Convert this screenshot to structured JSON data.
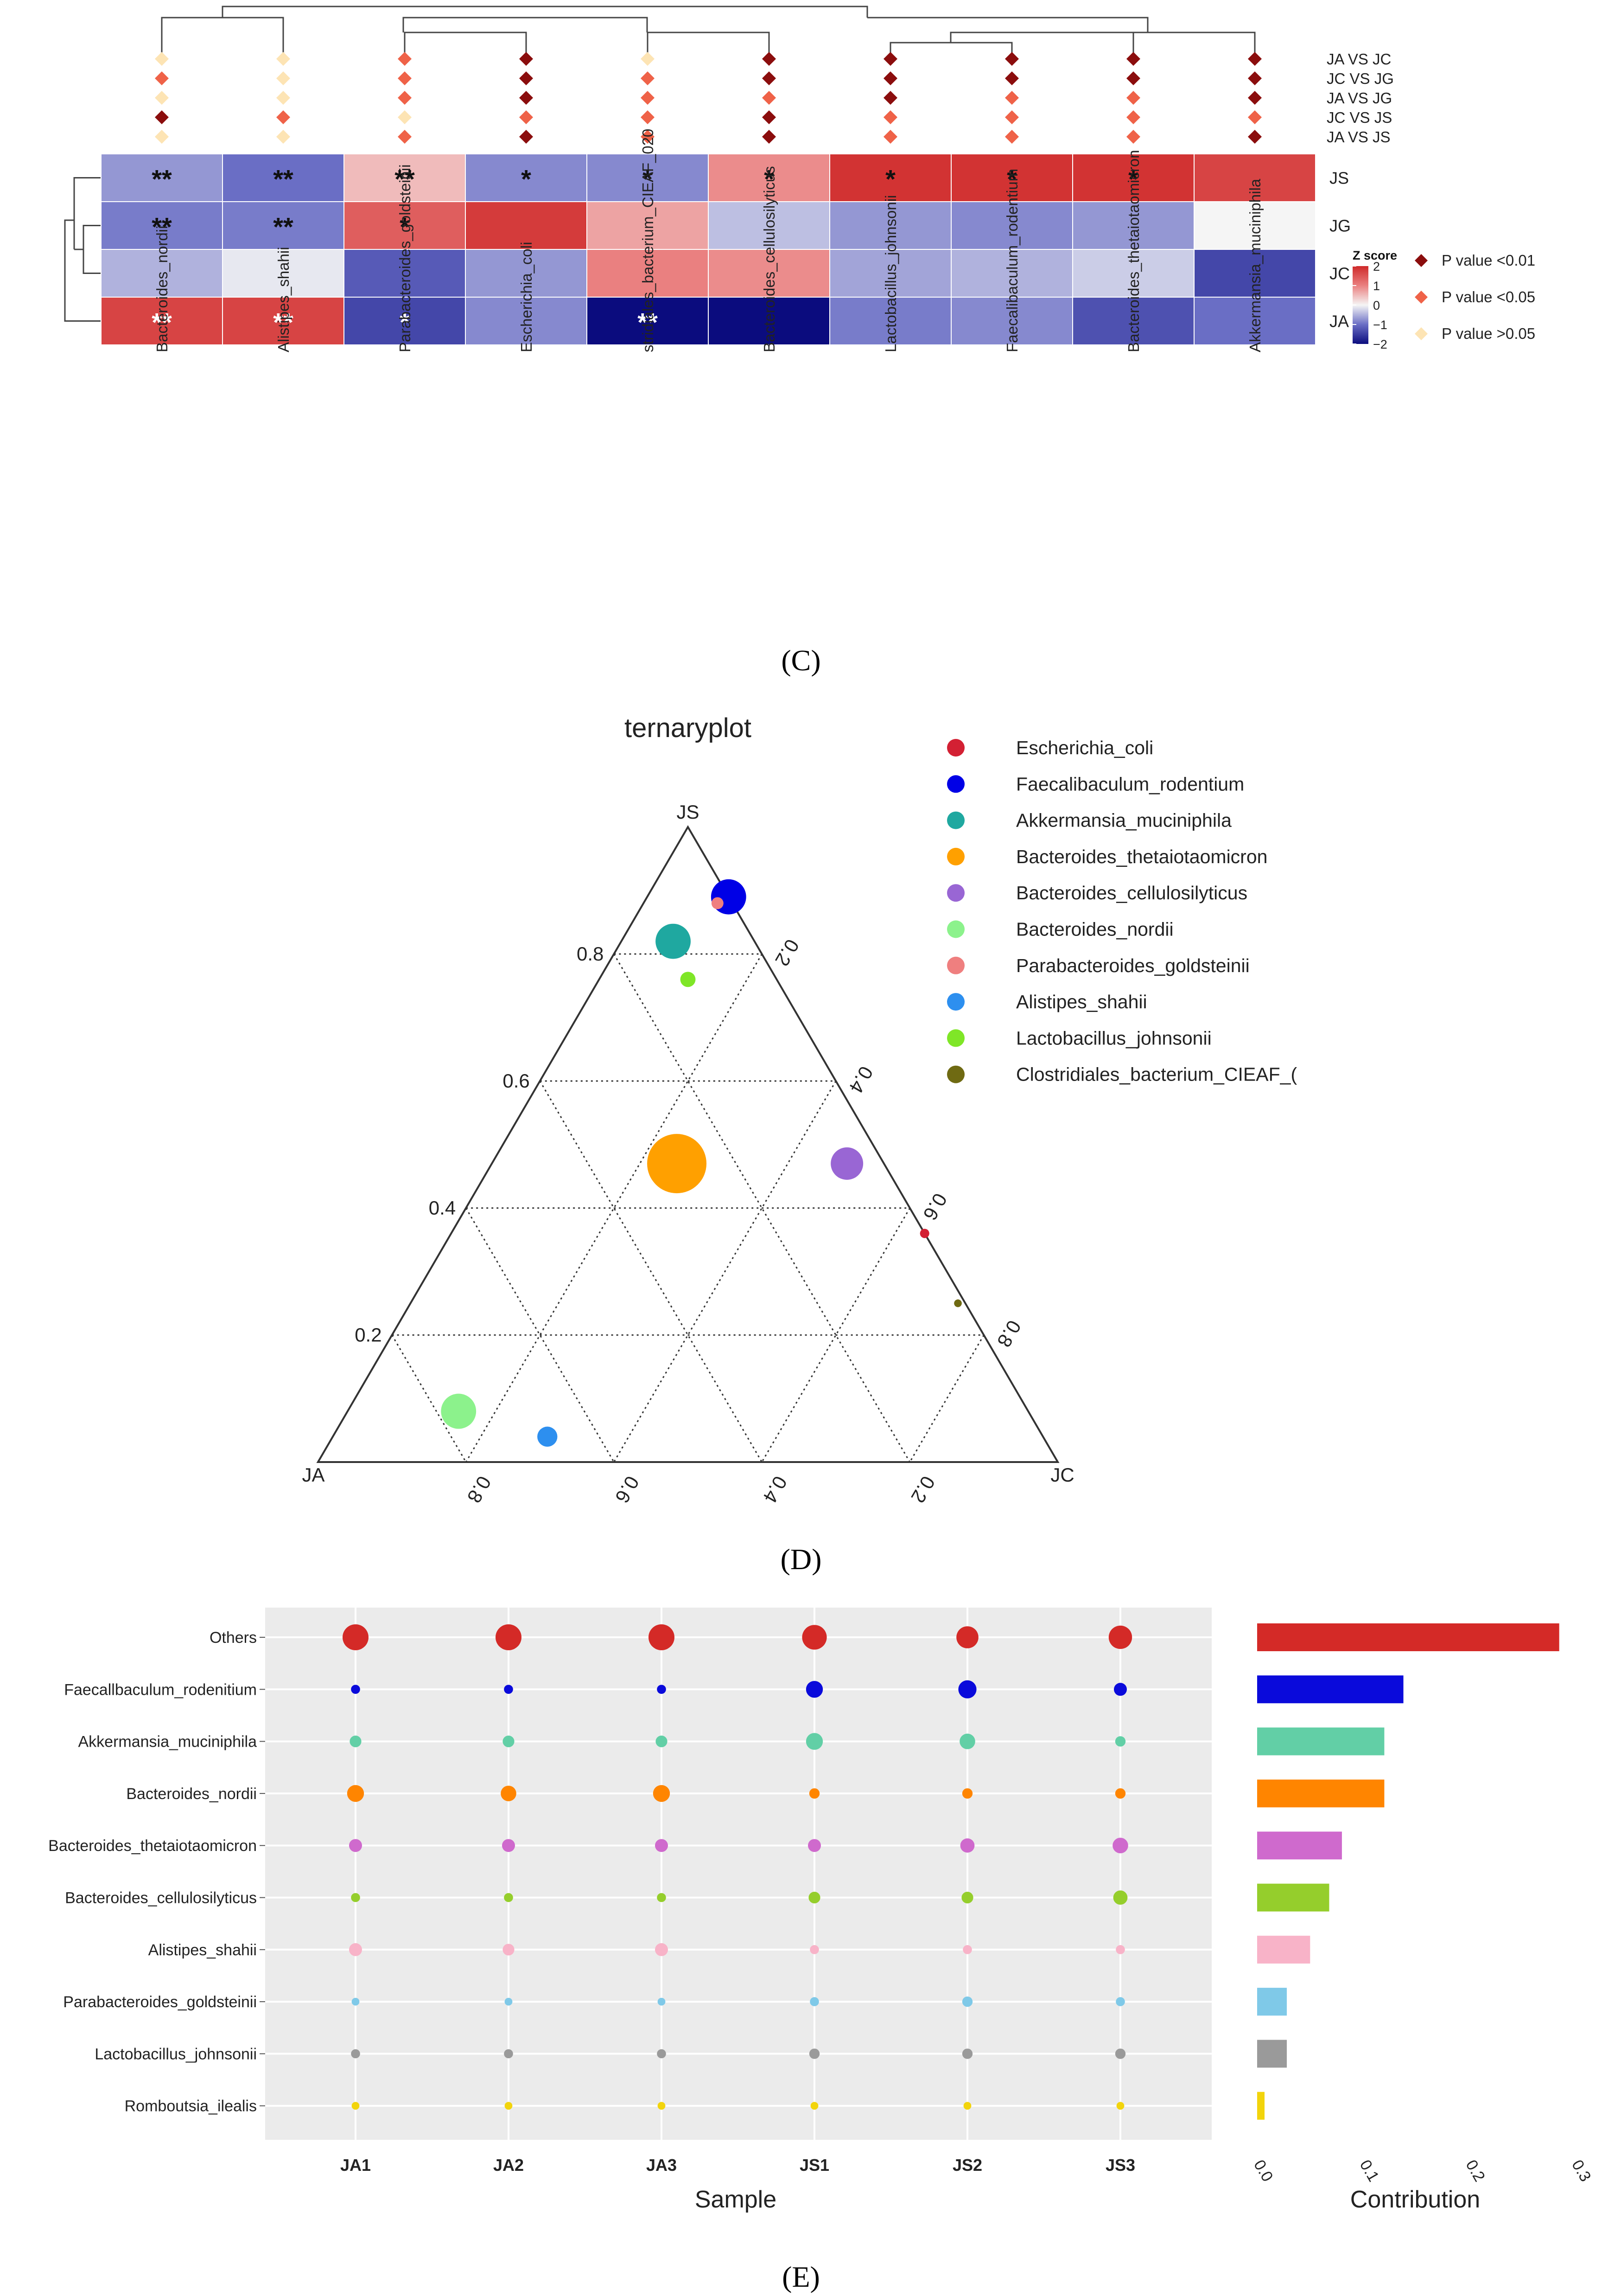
{
  "panels": {
    "c": "(C)",
    "d": "(D)",
    "e": "(E)"
  },
  "chart_data": [
    {
      "id": "heatmap",
      "type": "heatmap",
      "title": "",
      "rows": [
        "JS",
        "JG",
        "JC",
        "JA"
      ],
      "columns": [
        "Bacteroides_nordii",
        "Alistipes_shahii",
        "Parabacteroides_goldsteinii",
        "Escherichia_coli",
        "stridiales_bacterium_CIEAF_020",
        "Bacteroides_cellulosilyticus",
        "Lactobacillus_johnsonii",
        "Faecalibaculum_rodentium",
        "Bacteroides_thetaiotaomicron",
        "Akkermansia_muciniphila"
      ],
      "z": [
        [
          -0.7,
          -1.0,
          0.5,
          -0.8,
          -0.8,
          0.9,
          1.9,
          1.9,
          1.9,
          1.7
        ],
        [
          -0.9,
          -0.9,
          1.4,
          1.8,
          0.7,
          -0.4,
          -0.7,
          -0.8,
          -0.7,
          0.0
        ],
        [
          -0.5,
          -0.1,
          -1.2,
          -0.7,
          1.0,
          0.9,
          -0.6,
          -0.5,
          -0.3,
          -1.4
        ],
        [
          1.7,
          1.7,
          -1.4,
          -0.8,
          -2.0,
          -2.0,
          -0.9,
          -0.8,
          -1.3,
          -1.0
        ]
      ],
      "stars": [
        [
          "**",
          "**",
          "**",
          "*",
          "*",
          "*",
          "*",
          "*",
          "*",
          ""
        ],
        [
          "**",
          "**",
          "*",
          "",
          "",
          "",
          "",
          "",
          "",
          ""
        ],
        [
          "",
          "",
          "",
          "",
          "",
          "",
          "",
          "",
          "",
          ""
        ],
        [
          "**",
          "**",
          "*",
          "",
          "**",
          "",
          "",
          "",
          "",
          ""
        ]
      ],
      "star_color": [
        [
          "dark",
          "dark",
          "dark",
          "dark",
          "dark",
          "dark",
          "dark",
          "dark",
          "dark",
          ""
        ],
        [
          "dark",
          "dark",
          "dark",
          "",
          "",
          "",
          "",
          "",
          "",
          ""
        ],
        [
          "",
          "",
          "",
          "",
          "",
          "",
          "",
          "",
          "",
          ""
        ],
        [
          "light",
          "light",
          "light",
          "",
          "light",
          "",
          "",
          "",
          "",
          ""
        ]
      ],
      "comparisons": [
        "JA VS JC",
        "JC VS JG",
        "JA VS JG",
        "JC VS JS",
        "JA VS JS"
      ],
      "p_levels": [
        [
          2,
          2,
          1,
          0,
          2,
          0,
          0,
          0,
          0,
          0
        ],
        [
          1,
          2,
          1,
          0,
          1,
          0,
          0,
          0,
          0,
          0
        ],
        [
          2,
          2,
          1,
          0,
          1,
          1,
          0,
          1,
          1,
          0
        ],
        [
          0,
          1,
          2,
          1,
          1,
          0,
          1,
          1,
          1,
          1
        ],
        [
          2,
          2,
          1,
          0,
          1,
          0,
          1,
          1,
          1,
          0
        ]
      ],
      "p_legend": [
        "P value <0.01",
        "P value <0.05",
        "P value >0.05"
      ],
      "p_colors": [
        "#8b0d0d",
        "#ef6248",
        "#fde4b4"
      ],
      "zscore": {
        "title": "Z score",
        "ticks": [
          2,
          1,
          0,
          -1,
          -2
        ],
        "tick_labels": [
          "2",
          "1",
          "0",
          "−1",
          "−2"
        ],
        "range": [
          -2,
          2
        ],
        "colors": {
          "low": "#0b0c7e",
          "mid_low": "#6a6ec5",
          "mid": "#f5f5f5",
          "mid_high": "#ea8080",
          "high": "#cf2a2a"
        }
      }
    },
    {
      "id": "ternary",
      "type": "scatter",
      "title": "ternaryplot",
      "vertices": [
        "JS",
        "JA",
        "JC"
      ],
      "left_ticks": [
        "0.8",
        "0.6",
        "0.4",
        "0.2"
      ],
      "right_ticks": [
        "0.2",
        "0.4",
        "0.6",
        "0.8"
      ],
      "bottom_ticks": [
        "0.8",
        "0.6",
        "0.4",
        "0.2"
      ],
      "legend": [
        "Escherichia_coli",
        "Faecalibaculum_rodentium",
        "Akkermansia_muciniphila",
        "Bacteroides_thetaiotaomicron",
        "Bacteroides_cellulosilyticus",
        "Bacteroides_nordii",
        "Parabacteroides_goldsteinii",
        "Alistipes_shahii",
        "Lactobacillus_johnsonii",
        "Clostridiales_bacterium_CIEAF_("
      ],
      "colors": [
        "#d32033",
        "#0000e6",
        "#1fa8a0",
        "#ffa000",
        "#9966d4",
        "#8cf28c",
        "#ef7f7f",
        "#2d8fef",
        "#7fe627",
        "#6f6a12"
      ],
      "points": [
        {
          "name": "Escherichia_coli",
          "JS": 0.36,
          "JA": 0.0,
          "JC": 0.64,
          "size": 0.07
        },
        {
          "name": "Faecalibaculum_rodentium",
          "JS": 0.89,
          "JA": 0.0,
          "JC": 0.11,
          "size": 0.55
        },
        {
          "name": "Akkermansia_muciniphila",
          "JS": 0.82,
          "JA": 0.11,
          "JC": 0.07,
          "size": 0.55
        },
        {
          "name": "Bacteroides_thetaiotaomicron",
          "JS": 0.47,
          "JA": 0.28,
          "JC": 0.25,
          "size": 1.0
        },
        {
          "name": "Bacteroides_cellulosilyticus",
          "JS": 0.47,
          "JA": 0.05,
          "JC": 0.48,
          "size": 0.5
        },
        {
          "name": "Bacteroides_nordii",
          "JS": 0.08,
          "JA": 0.77,
          "JC": 0.15,
          "size": 0.55
        },
        {
          "name": "Parabacteroides_goldsteinii",
          "JS": 0.88,
          "JA": 0.02,
          "JC": 0.1,
          "size": 0.12
        },
        {
          "name": "Alistipes_shahii",
          "JS": 0.04,
          "JA": 0.67,
          "JC": 0.29,
          "size": 0.27
        },
        {
          "name": "Lactobacillus_johnsonii",
          "JS": 0.76,
          "JA": 0.12,
          "JC": 0.12,
          "size": 0.18
        },
        {
          "name": "Clostridiales_bacterium_CIEAF_020",
          "JS": 0.25,
          "JA": 0.01,
          "JC": 0.74,
          "size": 0.04
        }
      ]
    },
    {
      "id": "dotplot",
      "type": "scatter",
      "xlabel": "Sample",
      "samples": [
        "JA1",
        "JA2",
        "JA3",
        "JS1",
        "JS2",
        "JS3"
      ],
      "taxa": [
        "Others",
        "Faecallbaculum_rodenitium",
        "Akkermansia_muciniphila",
        "Bacteroides_nordii",
        "Bacteroides_thetaiotaomicron",
        "Bacteroides_cellulosilyticus",
        "Alistipes_shahii",
        "Parabacteroides_goldsteinii",
        "Lactobacillus_johnsonii",
        "Romboutsia_ilealis"
      ],
      "colors": [
        "#d42a27",
        "#0a0adb",
        "#62cfa6",
        "#ff8500",
        "#cf6acd",
        "#95ce2c",
        "#f8b3c8",
        "#7fc9e8",
        "#9a9a9a",
        "#f2d40c"
      ],
      "sizes": [
        [
          1.0,
          1.0,
          1.0,
          0.95,
          0.85,
          0.9
        ],
        [
          0.35,
          0.35,
          0.35,
          0.65,
          0.7,
          0.5
        ],
        [
          0.45,
          0.45,
          0.45,
          0.65,
          0.6,
          0.4
        ],
        [
          0.65,
          0.6,
          0.65,
          0.4,
          0.4,
          0.4
        ],
        [
          0.5,
          0.5,
          0.5,
          0.5,
          0.55,
          0.6
        ],
        [
          0.35,
          0.35,
          0.35,
          0.45,
          0.45,
          0.55
        ],
        [
          0.5,
          0.45,
          0.5,
          0.35,
          0.35,
          0.35
        ],
        [
          0.3,
          0.3,
          0.3,
          0.35,
          0.4,
          0.35
        ],
        [
          0.35,
          0.35,
          0.35,
          0.4,
          0.4,
          0.4
        ],
        [
          0.3,
          0.3,
          0.3,
          0.3,
          0.3,
          0.3
        ]
      ]
    },
    {
      "id": "contribution",
      "type": "bar",
      "xlabel": "Contribution",
      "ticks": [
        "0.0",
        "0.1",
        "0.2",
        "0.3"
      ],
      "xlim": [
        0,
        0.3
      ],
      "categories": [
        "Others",
        "Faecallbaculum_rodenitium",
        "Akkermansia_muciniphila",
        "Bacteroides_nordii",
        "Bacteroides_thetaiotaomicron",
        "Bacteroides_cellulosilyticus",
        "Alistipes_shahii",
        "Parabacteroides_goldsteinii",
        "Lactobacillus_johnsonii",
        "Romboutsia_ilealis"
      ],
      "values": [
        0.285,
        0.138,
        0.12,
        0.12,
        0.08,
        0.068,
        0.05,
        0.028,
        0.028,
        0.007
      ],
      "colors": [
        "#d42a27",
        "#0a0adb",
        "#62cfa6",
        "#ff8500",
        "#cf6acd",
        "#95ce2c",
        "#f8b3c8",
        "#7fc9e8",
        "#9a9a9a",
        "#f2d40c"
      ]
    }
  ]
}
